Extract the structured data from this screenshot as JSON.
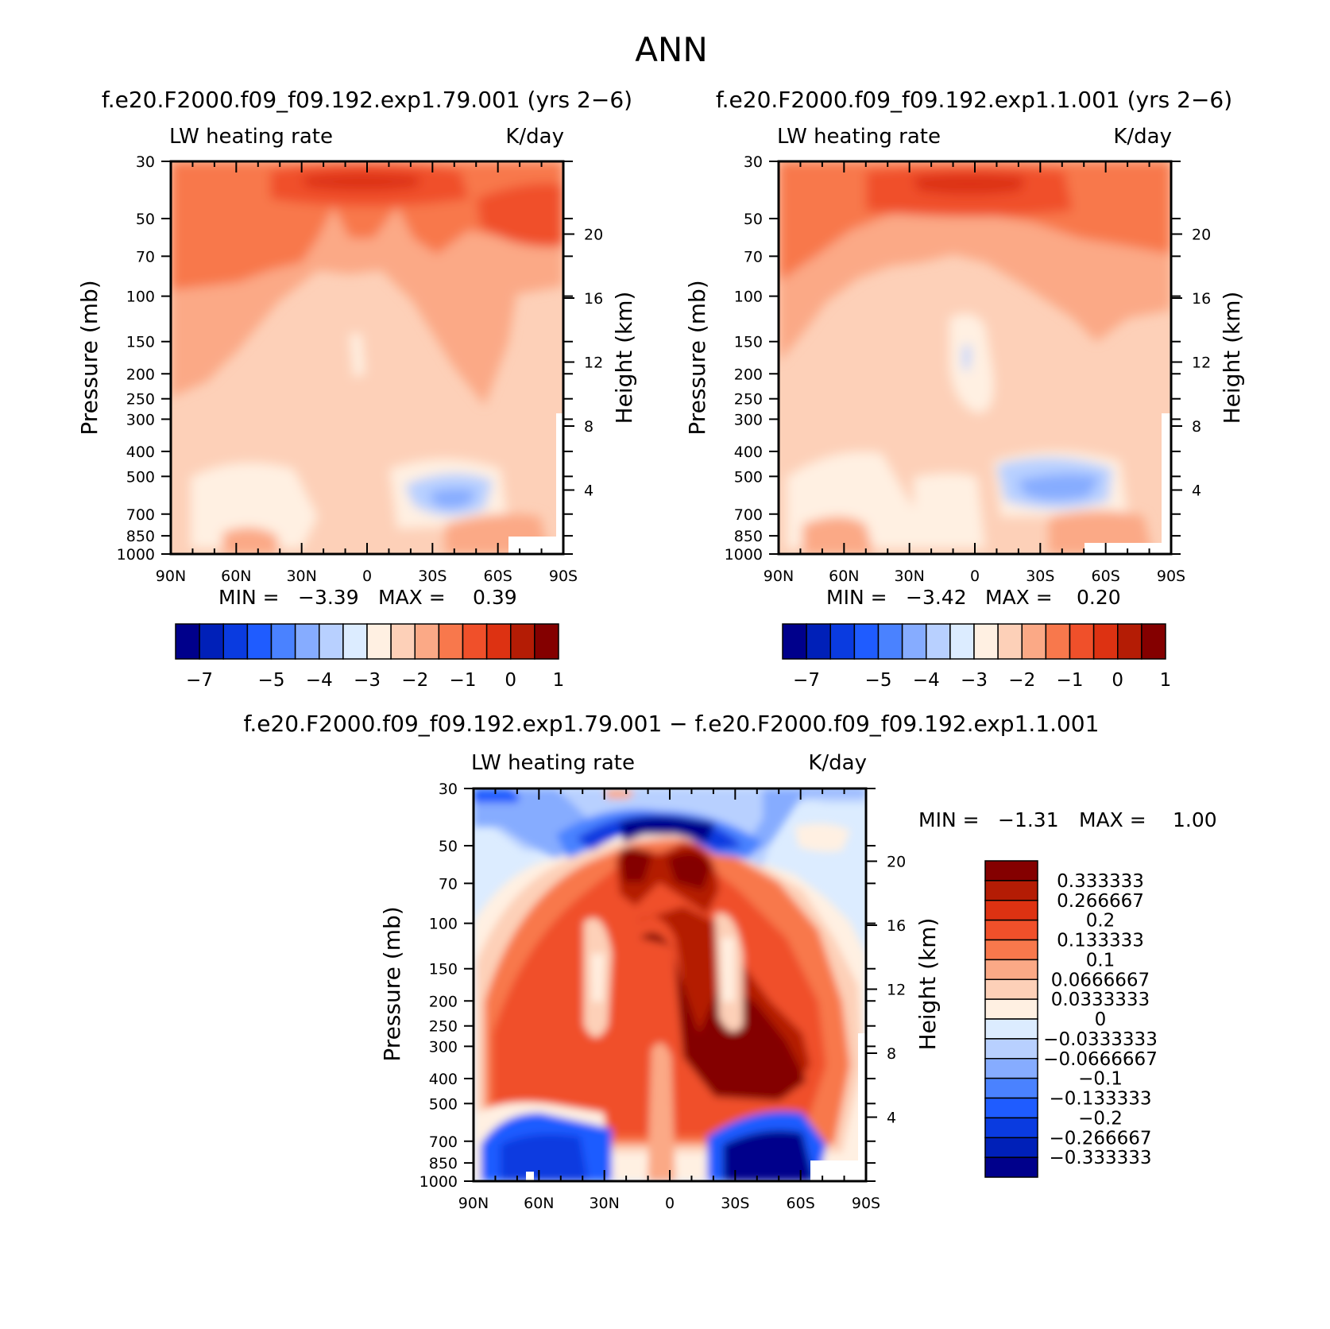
{
  "figure": {
    "title": "ANN",
    "panels": [
      {
        "id": "case1",
        "case_title": "f.e20.F2000.f09_f09.192.exp1.79.001 (yrs 2−6)",
        "variable": "LW heating rate",
        "units": "K/day",
        "ylabel_left": "Pressure (mb)",
        "ylabel_right": "Height (km)",
        "min_label": "MIN =",
        "min_value": "−3.39",
        "max_label": "MAX =",
        "max_value": "0.39"
      },
      {
        "id": "case2",
        "case_title": "f.e20.F2000.f09_f09.192.exp1.1.001 (yrs 2−6)",
        "variable": "LW heating rate",
        "units": "K/day",
        "ylabel_left": "Pressure (mb)",
        "ylabel_right": "Height (km)",
        "min_label": "MIN =",
        "min_value": "−3.42",
        "max_label": "MAX =",
        "max_value": "0.20"
      },
      {
        "id": "diff",
        "case_title": "f.e20.F2000.f09_f09.192.exp1.79.001 − f.e20.F2000.f09_f09.192.exp1.1.001",
        "variable": "LW heating rate",
        "units": "K/day",
        "ylabel_left": "Pressure (mb)",
        "ylabel_right": "Height (km)",
        "min_label": "MIN =",
        "min_value": "−1.31",
        "max_label": "MAX =",
        "max_value": "1.00"
      }
    ]
  },
  "chart_data": [
    {
      "type": "heatmap",
      "panel": "case1",
      "x_ticks": [
        "90N",
        "60N",
        "30N",
        "0",
        "30S",
        "60S",
        "90S"
      ],
      "x_values": [
        90,
        60,
        30,
        0,
        -30,
        -60,
        -90
      ],
      "y_ticks": [
        "30",
        "50",
        "70",
        "100",
        "150",
        "200",
        "250",
        "300",
        "400",
        "500",
        "700",
        "850",
        "1000"
      ],
      "y_values": [
        30,
        50,
        70,
        100,
        150,
        200,
        250,
        300,
        400,
        500,
        700,
        850,
        1000
      ],
      "y_scale": "log",
      "ylim": [
        1000,
        30
      ],
      "height_ticks": [
        "20",
        "16",
        "12",
        "8",
        "4"
      ],
      "height_values": [
        20,
        16,
        12,
        8,
        4
      ],
      "contour_levels": [
        -7,
        -6.5,
        -6,
        -5.5,
        -5,
        -4.5,
        -4,
        -3.5,
        -3,
        -2.5,
        -2,
        -1.5,
        -1,
        -0.5,
        0,
        0.5,
        1
      ],
      "colorbar_labels": [
        "−7",
        "−5",
        "−4",
        "−3",
        "−2",
        "−1",
        "0",
        "1"
      ],
      "min": -3.39,
      "max": 0.39
    },
    {
      "type": "heatmap",
      "panel": "case2",
      "x_ticks": [
        "90N",
        "60N",
        "30N",
        "0",
        "30S",
        "60S",
        "90S"
      ],
      "x_values": [
        90,
        60,
        30,
        0,
        -30,
        -60,
        -90
      ],
      "y_ticks": [
        "30",
        "50",
        "70",
        "100",
        "150",
        "200",
        "250",
        "300",
        "400",
        "500",
        "700",
        "850",
        "1000"
      ],
      "y_values": [
        30,
        50,
        70,
        100,
        150,
        200,
        250,
        300,
        400,
        500,
        700,
        850,
        1000
      ],
      "y_scale": "log",
      "ylim": [
        1000,
        30
      ],
      "height_ticks": [
        "20",
        "16",
        "12",
        "8",
        "4"
      ],
      "height_values": [
        20,
        16,
        12,
        8,
        4
      ],
      "colorbar_labels": [
        "−7",
        "−5",
        "−4",
        "−3",
        "−2",
        "−1",
        "0",
        "1"
      ],
      "min": -3.42,
      "max": 0.2
    },
    {
      "type": "heatmap",
      "panel": "diff",
      "x_ticks": [
        "90N",
        "60N",
        "30N",
        "0",
        "30S",
        "60S",
        "90S"
      ],
      "x_values": [
        90,
        60,
        30,
        0,
        -30,
        -60,
        -90
      ],
      "y_ticks": [
        "30",
        "50",
        "70",
        "100",
        "150",
        "200",
        "250",
        "300",
        "400",
        "500",
        "700",
        "850",
        "1000"
      ],
      "y_values": [
        30,
        50,
        70,
        100,
        150,
        200,
        250,
        300,
        400,
        500,
        700,
        850,
        1000
      ],
      "y_scale": "log",
      "ylim": [
        1000,
        30
      ],
      "height_ticks": [
        "20",
        "16",
        "12",
        "8",
        "4"
      ],
      "height_values": [
        20,
        16,
        12,
        8,
        4
      ],
      "colorbar_labels": [
        "0.333333",
        "0.266667",
        "0.2",
        "0.133333",
        "0.1",
        "0.0666667",
        "0.0333333",
        "0",
        "−0.0333333",
        "−0.0666667",
        "−0.1",
        "−0.133333",
        "−0.2",
        "−0.266667",
        "−0.333333"
      ],
      "min": -1.31,
      "max": 1.0
    }
  ],
  "colors": {
    "abs_scale": [
      "#00008b",
      "#0020b8",
      "#0a3be0",
      "#1f5cff",
      "#4a82ff",
      "#86acff",
      "#b8d0ff",
      "#dcecff",
      "#fff0e2",
      "#fdd0b8",
      "#fba986",
      "#f8784c",
      "#f0502a",
      "#dd3212",
      "#b41c05",
      "#840000"
    ],
    "diff_scale": [
      "#00008b",
      "#0020b8",
      "#0a3be0",
      "#1f5cff",
      "#4a82ff",
      "#86acff",
      "#b8d0ff",
      "#dcecff",
      "#fff0e2",
      "#fdd0b8",
      "#fba986",
      "#f8784c",
      "#f0502a",
      "#dd3212",
      "#b41c05",
      "#840000"
    ]
  }
}
